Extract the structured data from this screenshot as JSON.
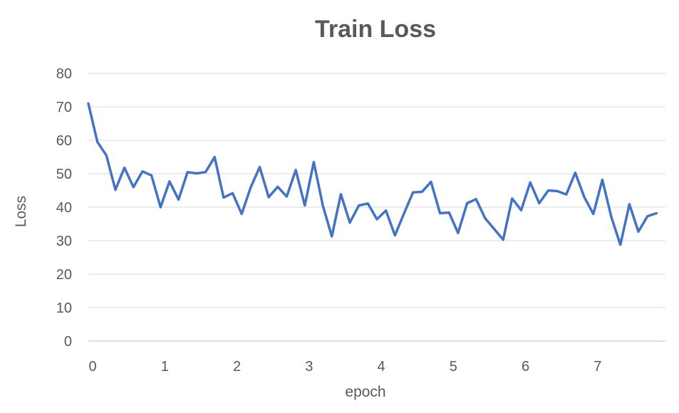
{
  "chart_data": {
    "type": "line",
    "title": "Train Loss",
    "xlabel": "epoch",
    "ylabel": "Loss",
    "xlim": [
      0,
      7.9
    ],
    "ylim": [
      0,
      80
    ],
    "y_ticks": [
      0,
      10,
      20,
      30,
      40,
      50,
      60,
      70,
      80
    ],
    "x_ticks": [
      0,
      1,
      2,
      3,
      4,
      5,
      6,
      7
    ],
    "grid": "horizontal",
    "legend": "none",
    "series": [
      {
        "color": "#4472C4",
        "x": [
          0,
          0.125,
          0.25,
          0.375,
          0.5,
          0.625,
          0.75,
          0.875,
          1,
          1.125,
          1.25,
          1.375,
          1.5,
          1.625,
          1.75,
          1.875,
          2,
          2.125,
          2.25,
          2.375,
          2.5,
          2.625,
          2.75,
          2.875,
          3,
          3.125,
          3.25,
          3.375,
          3.5,
          3.625,
          3.75,
          3.875,
          4,
          4.125,
          4.25,
          4.375,
          4.5,
          4.625,
          4.75,
          4.875,
          5,
          5.125,
          5.25,
          5.375,
          5.5,
          5.625,
          5.75,
          5.875,
          6,
          6.125,
          6.25,
          6.375,
          6.5,
          6.625,
          6.75,
          6.875,
          7,
          7.125,
          7.25,
          7.375,
          7.5,
          7.625,
          7.75,
          7.875
        ],
        "y": [
          71,
          59.5,
          55.5,
          45.2,
          51.8,
          46,
          50.7,
          49.5,
          40,
          47.7,
          42.3,
          50.5,
          50.1,
          50.5,
          55,
          42.9,
          44.2,
          38,
          45.9,
          52,
          43,
          46.1,
          43.2,
          51.1,
          40.5,
          53.5,
          40.5,
          31.3,
          43.9,
          35.4,
          40.5,
          41.1,
          36.4,
          39,
          31.6,
          38.1,
          44.4,
          44.6,
          47.6,
          38.2,
          38.4,
          32.3,
          41.2,
          42.4,
          36.7,
          33.5,
          30.3,
          42.6,
          39.1,
          47.4,
          41.2,
          45,
          44.8,
          43.8,
          50.3,
          43,
          38,
          48.2,
          37,
          28.8,
          40.9,
          32.7,
          37.3,
          38.2
        ]
      }
    ]
  }
}
